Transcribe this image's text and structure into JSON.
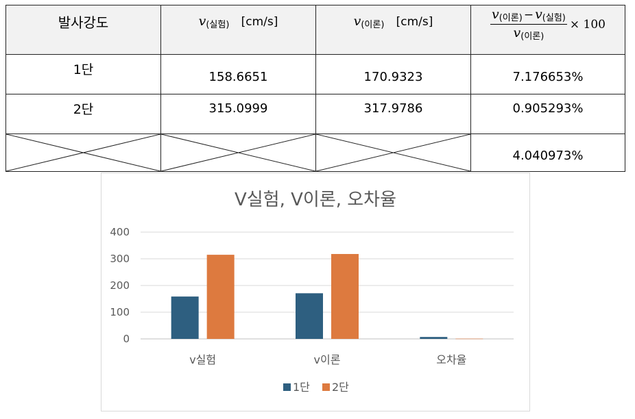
{
  "table": {
    "headers": {
      "col1": "발사강도",
      "col2_var": "v",
      "col2_sub": "(실험)",
      "col2_unit": "[cm/s]",
      "col3_var": "v",
      "col3_sub": "(이론)",
      "col3_unit": "[cm/s]",
      "col4": {
        "num_var1": "v",
        "num_sub1": "(이론)",
        "minus": "−",
        "num_var2": "v",
        "num_sub2": "(실험)",
        "den_var": "v",
        "den_sub": "(이론)",
        "times": "× 100"
      }
    },
    "rows": [
      {
        "label": "1단",
        "v_exp": "158.6651",
        "v_theory": "170.9323",
        "error": "7.176653%"
      },
      {
        "label": "2단",
        "v_exp": "315.0999",
        "v_theory": "317.9786",
        "error": "0.905293%"
      },
      {
        "label": "",
        "v_exp": "",
        "v_theory": "",
        "error": "4.040973%"
      }
    ]
  },
  "chart_data": {
    "type": "bar",
    "title": "V실험, V이론, 오차율",
    "categories": [
      "v실험",
      "v이론",
      "오차율"
    ],
    "series": [
      {
        "name": "1단",
        "color": "#2e5f80",
        "values": [
          158.6651,
          170.9323,
          7.176653
        ]
      },
      {
        "name": "2단",
        "color": "#dd7a3f",
        "values": [
          315.0999,
          317.9786,
          0.905293
        ]
      }
    ],
    "ylim": [
      0,
      400
    ],
    "yticks": [
      "0",
      "100",
      "200",
      "300",
      "400"
    ],
    "grid": true,
    "legend": "bottom",
    "xlabel": "",
    "ylabel": ""
  }
}
